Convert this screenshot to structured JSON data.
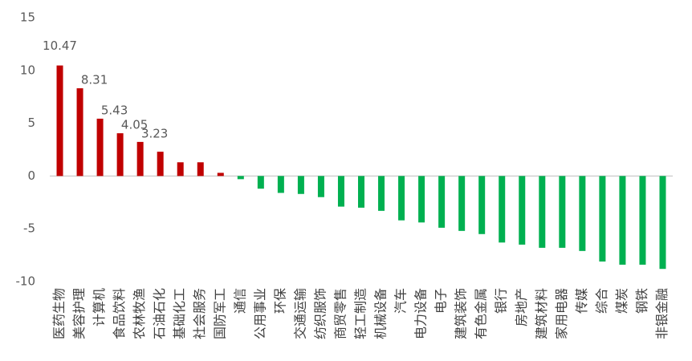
{
  "chart_data": {
    "type": "bar",
    "categories": [
      "医药生物",
      "美容护理",
      "计算机",
      "食品饮料",
      "农林牧渔",
      "石油石化",
      "基础化工",
      "社会服务",
      "国防军工",
      "通信",
      "公用事业",
      "环保",
      "交通运输",
      "纺织服饰",
      "商贸零售",
      "轻工制造",
      "机械设备",
      "汽车",
      "电力设备",
      "电子",
      "建筑装饰",
      "有色金属",
      "银行",
      "房地产",
      "建筑材料",
      "家用电器",
      "传媒",
      "综合",
      "煤炭",
      "钢铁",
      "非银金融"
    ],
    "values": [
      10.47,
      8.31,
      5.43,
      4.05,
      3.23,
      2.3,
      1.3,
      1.3,
      0.3,
      -0.3,
      -1.2,
      -1.6,
      -1.7,
      -2.0,
      -2.9,
      -3.0,
      -3.3,
      -4.2,
      -4.4,
      -4.9,
      -5.2,
      -5.5,
      -6.3,
      -6.5,
      -6.8,
      -6.8,
      -7.1,
      -8.1,
      -8.4,
      -8.4,
      -8.8
    ],
    "value_labels": [
      "10.47",
      "8.31",
      "5.43",
      "4.05",
      "3.23",
      null,
      null,
      null,
      null,
      null,
      null,
      null,
      null,
      null,
      null,
      null,
      null,
      null,
      null,
      null,
      null,
      null,
      null,
      null,
      null,
      null,
      null,
      null,
      null,
      null,
      null
    ],
    "positive_color": "#c00000",
    "negative_color": "#00b050",
    "ylim": [
      -10,
      15
    ],
    "yticks": [
      -10,
      -5,
      0,
      5,
      10,
      15
    ],
    "grid": false
  }
}
